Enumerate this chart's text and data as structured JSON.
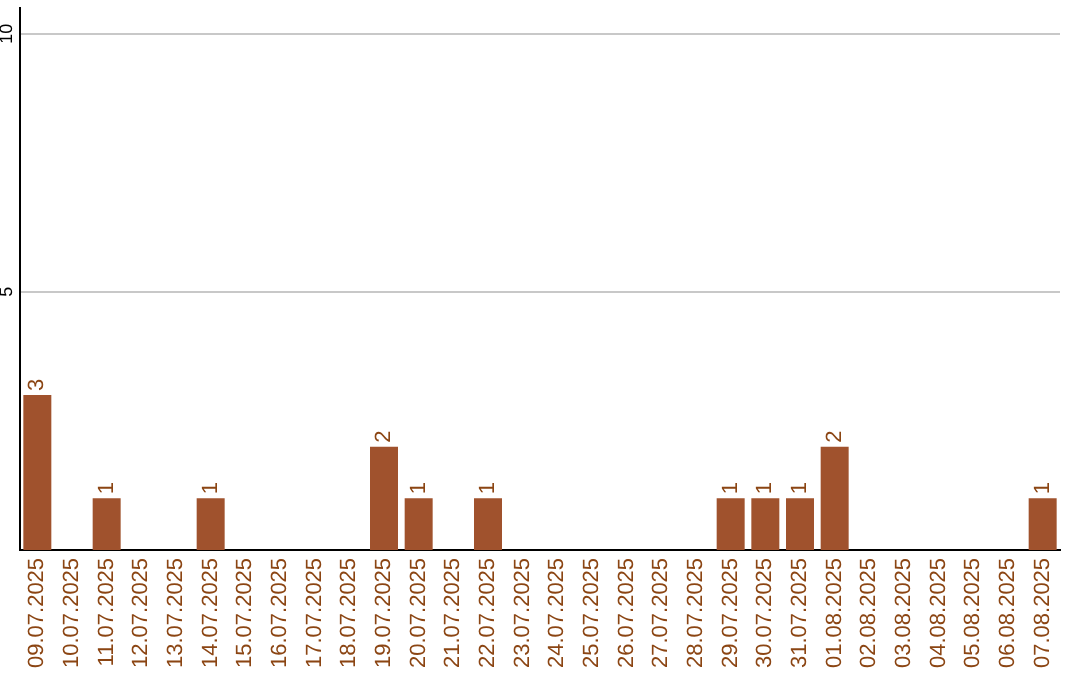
{
  "chart_data": {
    "type": "bar",
    "categories": [
      "09.07.2025",
      "10.07.2025",
      "11.07.2025",
      "12.07.2025",
      "13.07.2025",
      "14.07.2025",
      "15.07.2025",
      "16.07.2025",
      "17.07.2025",
      "18.07.2025",
      "19.07.2025",
      "20.07.2025",
      "21.07.2025",
      "22.07.2025",
      "23.07.2025",
      "24.07.2025",
      "25.07.2025",
      "26.07.2025",
      "27.07.2025",
      "28.07.2025",
      "29.07.2025",
      "30.07.2025",
      "31.07.2025",
      "01.08.2025",
      "02.08.2025",
      "03.08.2025",
      "04.08.2025",
      "05.08.2025",
      "06.08.2025",
      "07.08.2025"
    ],
    "values": [
      3,
      0,
      1,
      0,
      0,
      1,
      0,
      0,
      0,
      0,
      2,
      1,
      0,
      1,
      0,
      0,
      0,
      0,
      0,
      0,
      1,
      1,
      1,
      2,
      0,
      0,
      0,
      0,
      0,
      1
    ],
    "value_labels": [
      "3",
      null,
      "1",
      null,
      null,
      "1",
      null,
      null,
      null,
      null,
      "2",
      "1",
      null,
      "1",
      null,
      null,
      null,
      null,
      null,
      null,
      "1",
      "1",
      "1",
      "2",
      null,
      null,
      null,
      null,
      null,
      "1"
    ],
    "color": "#a0522d",
    "ylim": [
      0,
      10.5
    ],
    "yticks": [
      5,
      10
    ],
    "grid": "y",
    "legend": false
  }
}
